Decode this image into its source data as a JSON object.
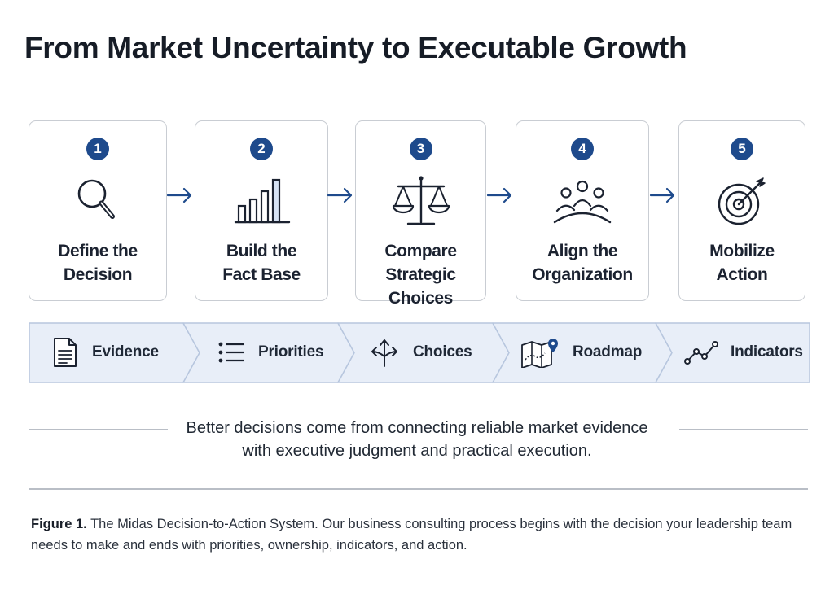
{
  "title": "From Market Uncertainty to Executable Growth",
  "steps": [
    {
      "number": "1",
      "line1": "Define the",
      "line2": "Decision",
      "icon": "magnifier-icon"
    },
    {
      "number": "2",
      "line1": "Build the",
      "line2": "Fact Base",
      "icon": "bar-chart-icon"
    },
    {
      "number": "3",
      "line1": "Compare",
      "line2": "Strategic Choices",
      "icon": "balance-scale-icon"
    },
    {
      "number": "4",
      "line1": "Align the",
      "line2": "Organization",
      "icon": "people-group-icon"
    },
    {
      "number": "5",
      "line1": "Mobilize",
      "line2": "Action",
      "icon": "target-icon"
    }
  ],
  "outputs": [
    {
      "label": "Evidence",
      "icon": "document-icon"
    },
    {
      "label": "Priorities",
      "icon": "list-icon"
    },
    {
      "label": "Choices",
      "icon": "split-arrows-icon"
    },
    {
      "label": "Roadmap",
      "icon": "map-pin-icon"
    },
    {
      "label": "Indicators",
      "icon": "trend-line-icon"
    }
  ],
  "tagline": {
    "line1": "Better decisions come from connecting reliable market evidence",
    "line2": "with executive judgment and practical execution."
  },
  "caption": {
    "label": "Figure 1.",
    "text": "The Midas Decision-to-Action System. Our business consulting process begins with the decision your leadership team needs to make and ends with priorities, ownership, indicators, and action."
  },
  "colors": {
    "accent": "#1e4a8c",
    "band_fill": "#e8eef8",
    "band_stroke": "#b7c6de",
    "card_border": "#c9cdd3",
    "icon_stroke": "#1b2230"
  }
}
